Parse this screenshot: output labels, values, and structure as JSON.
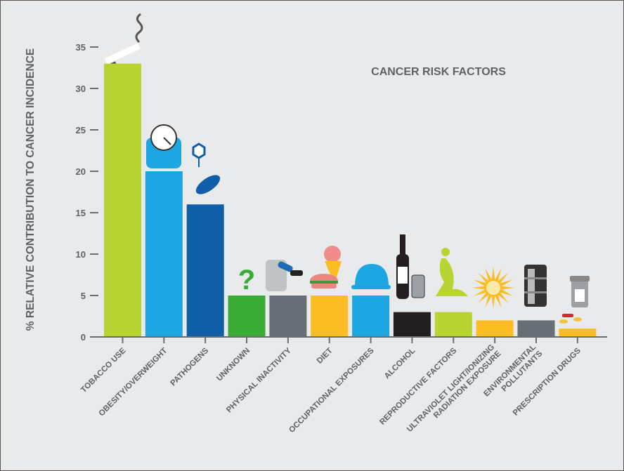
{
  "chart_data": {
    "type": "bar",
    "title": "CANCER RISK FACTORS",
    "xlabel": "",
    "ylabel": "% RELATIVE CONTRIBUTION TO CANCER INCIDENCE",
    "ylim": [
      0,
      35
    ],
    "yticks": [
      "0",
      "5",
      "10",
      "15",
      "20",
      "25",
      "30",
      "35"
    ],
    "grid": false,
    "categories": [
      [
        "TOBACCO USE"
      ],
      [
        "OBESITY/OVERWEIGHT"
      ],
      [
        "PATHOGENS"
      ],
      [
        "UNKNOWN"
      ],
      [
        "PHYSICAL INACTIVITY"
      ],
      [
        "DIET"
      ],
      [
        "OCCUPATIONAL EXPOSURES"
      ],
      [
        "ALCOHOL"
      ],
      [
        "REPRODUCTIVE FACTORS"
      ],
      [
        "ULTRAVIOLET LIGHT/IONIZING",
        "RADIATION EXPOSURE"
      ],
      [
        "ENVIRONMENTAL",
        "POLLUTANTS"
      ],
      [
        "PRESCRIPTION DRUGS"
      ]
    ],
    "values": [
      33,
      20,
      16,
      5,
      5,
      5,
      5,
      3,
      3,
      2,
      2,
      1
    ],
    "colors": [
      "#b8d432",
      "#1ea6e2",
      "#0f5ea8",
      "#3aab34",
      "#686e75",
      "#fbbd23",
      "#1ea6e2",
      "#231f20",
      "#b8d432",
      "#fbbd23",
      "#686e75",
      "#fbbd23"
    ],
    "icons": [
      "cigarette-icon",
      "scale-icon",
      "virus-bacteria-icon",
      "question-mark-icon",
      "recliner-icon",
      "burger-icecream-icon",
      "hard-hat-icon",
      "wine-bottle-can-icon",
      "kneeling-woman-icon",
      "sun-burst-icon",
      "oil-barrel-icon",
      "pill-bottle-icon"
    ]
  }
}
